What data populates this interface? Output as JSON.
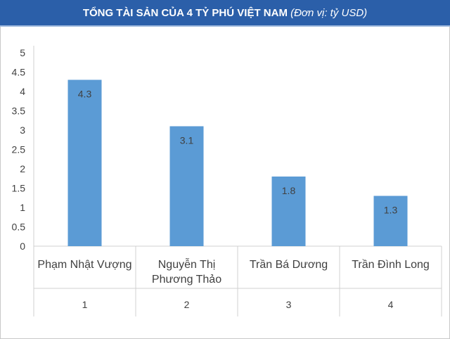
{
  "chart_data": {
    "type": "bar",
    "title": "TỔNG TÀI SẢN CỦA 4 TỶ PHÚ VIỆT NAM",
    "subtitle": "(Đơn vị: tỷ USD)",
    "categories": [
      [
        "Phạm Nhật Vượng"
      ],
      [
        "Nguyễn Thị",
        "Phương Thảo"
      ],
      [
        "Trần Bá Dương"
      ],
      [
        "Trần Đình Long"
      ]
    ],
    "indices": [
      "1",
      "2",
      "3",
      "4"
    ],
    "values": [
      4.3,
      3.1,
      1.8,
      1.3
    ],
    "data_labels": [
      "4.3",
      "3.1",
      "1.8",
      "1.3"
    ],
    "yticks": [
      "0",
      "0.5",
      "1",
      "1.5",
      "2",
      "2.5",
      "3",
      "3.5",
      "4",
      "4.5",
      "5"
    ],
    "ylim": [
      0,
      5
    ],
    "xlabel": "",
    "ylabel": "",
    "bar_color": "#5b9bd5",
    "grid": false
  }
}
